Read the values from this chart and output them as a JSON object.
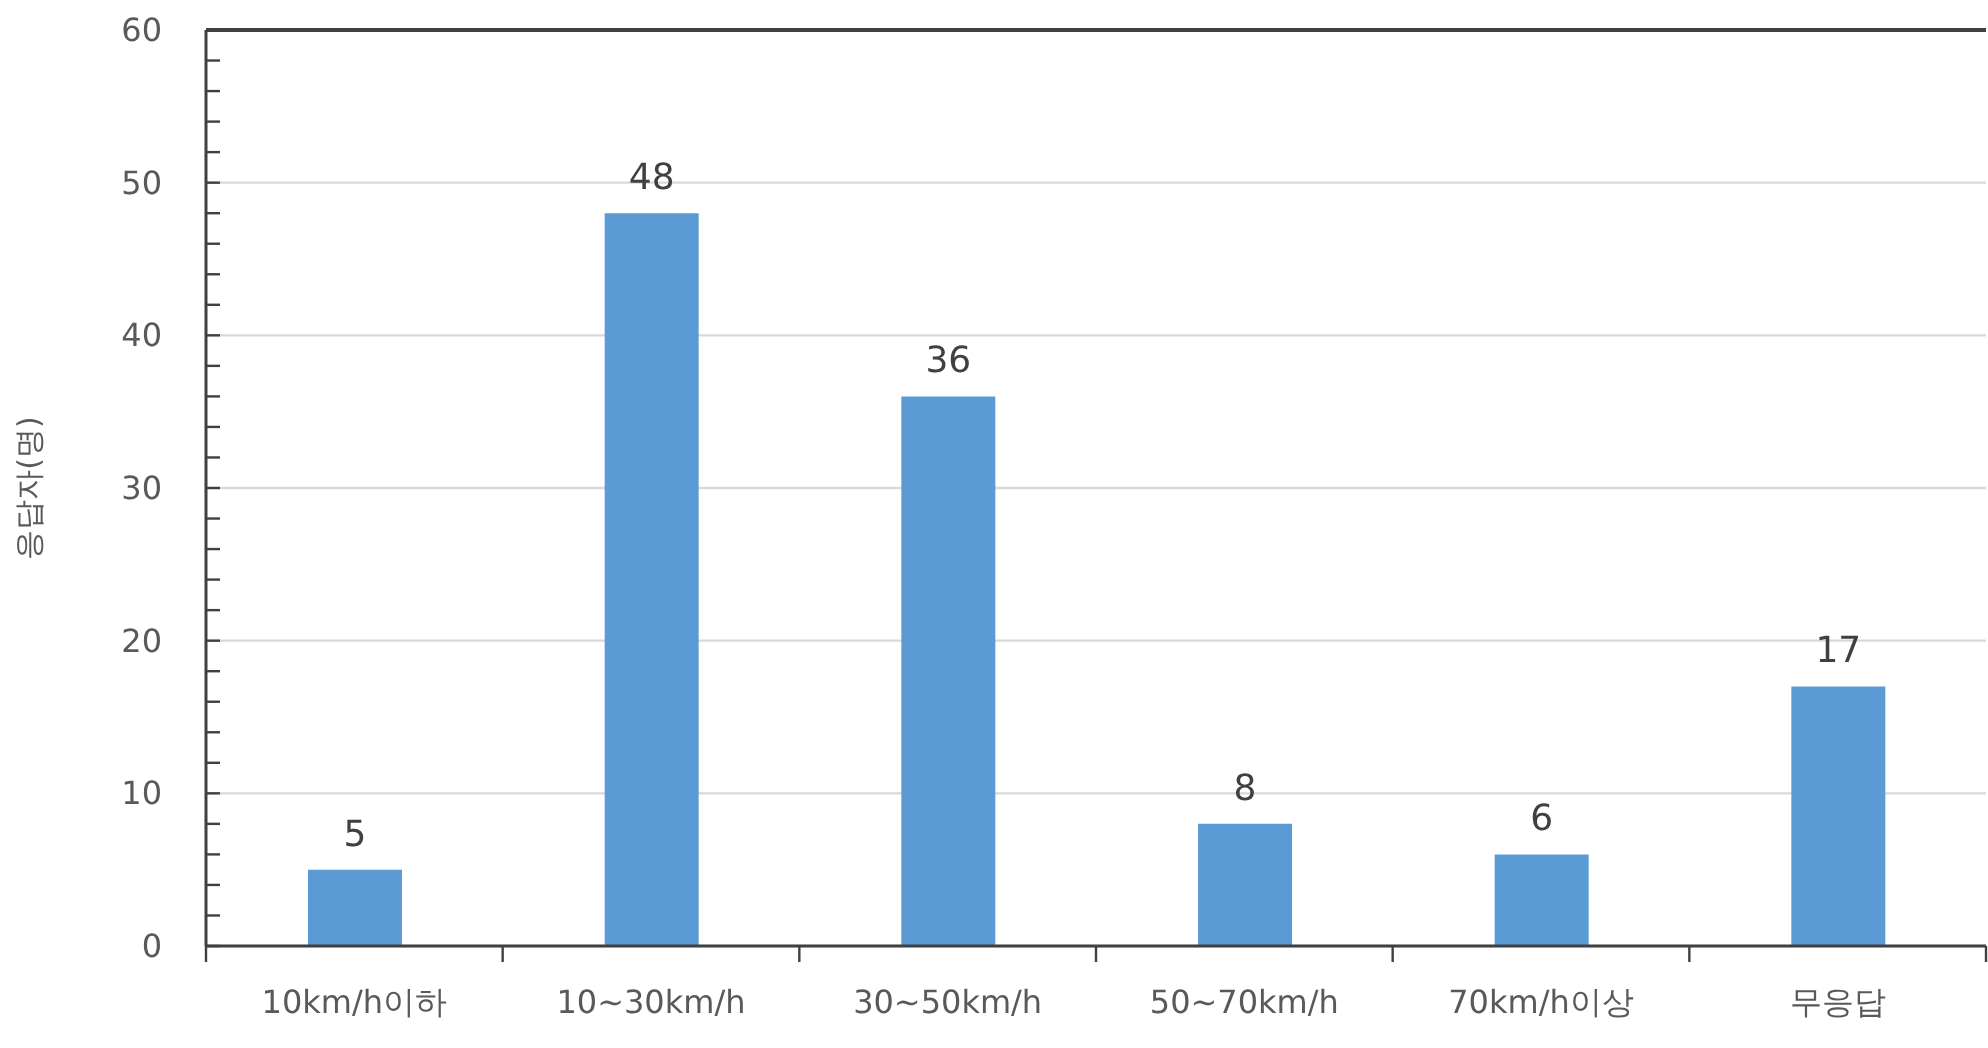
{
  "chart_data": {
    "type": "bar",
    "ylabel": "응답자(명)",
    "categories": [
      "10km/h이하",
      "10~30km/h",
      "30~50km/h",
      "50~70km/h",
      "70km/h이상",
      "무응답"
    ],
    "values": [
      5,
      48,
      36,
      8,
      6,
      17
    ],
    "color": "#5b9bd5",
    "ylim": [
      0,
      60
    ],
    "yticks": [
      0,
      {
        "value": 2,
        "label": null
      },
      {
        "value": 4,
        "label": null
      },
      {
        "value": 6,
        "label": null
      },
      {
        "value": 8,
        "label": null
      },
      10,
      {
        "value": 12,
        "label": null
      },
      {
        "value": 14,
        "label": null
      },
      {
        "value": 16,
        "label": null
      },
      {
        "value": 18,
        "label": null
      },
      20,
      {
        "value": 22,
        "label": null
      },
      {
        "value": 24,
        "label": null
      },
      {
        "value": 26,
        "label": null
      },
      {
        "value": 28,
        "label": null
      },
      30,
      {
        "value": 32,
        "label": null
      },
      {
        "value": 34,
        "label": null
      },
      {
        "value": 36,
        "label": null
      },
      {
        "value": 38,
        "label": null
      },
      40,
      {
        "value": 42,
        "label": null
      },
      {
        "value": 44,
        "label": null
      },
      {
        "value": 46,
        "label": null
      },
      {
        "value": 48,
        "label": null
      },
      50,
      {
        "value": 52,
        "label": null
      },
      {
        "value": 54,
        "label": null
      },
      {
        "value": 56,
        "label": null
      },
      {
        "value": 58,
        "label": null
      },
      60
    ],
    "grid": "y",
    "data_labels": true
  }
}
